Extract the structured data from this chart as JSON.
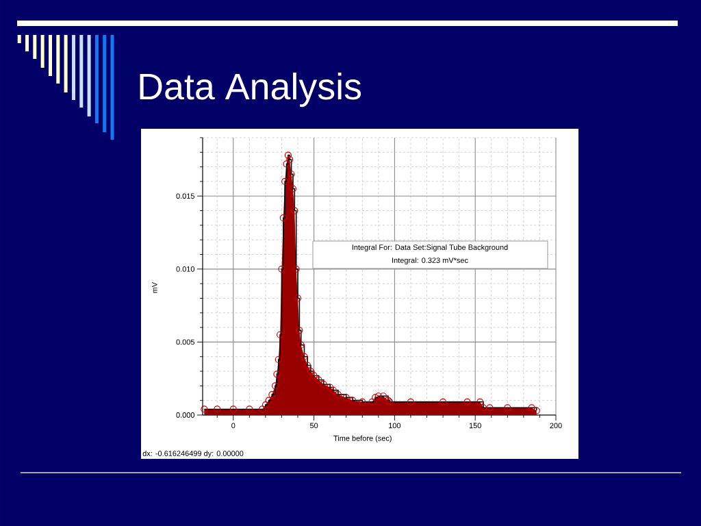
{
  "chart_data": {
    "type": "area",
    "title": "Data Analysis",
    "xlabel": "Time before (sec)",
    "ylabel": "mV",
    "annotations": [
      "Integral For: Data Set:Signal Tube Background",
      "Integral: 0.323 mV*sec",
      "dx: -0.616246499 dy: 0.00000"
    ],
    "x": [
      -18,
      -10,
      0,
      10,
      18,
      20,
      22,
      24,
      26,
      27,
      28,
      29,
      30,
      31,
      32,
      33,
      34,
      35,
      36,
      37,
      38,
      39,
      40,
      41,
      42,
      44,
      46,
      48,
      50,
      53,
      56,
      60,
      62,
      65,
      70,
      74,
      80,
      86,
      88,
      90,
      93,
      96,
      97,
      110,
      130,
      145,
      153,
      155,
      159,
      170,
      185,
      188
    ],
    "series": [
      {
        "color": "#990000",
        "values": [
          0.0004,
          0.0004,
          0.0004,
          0.0004,
          0.0004,
          0.0007,
          0.001,
          0.0014,
          0.002,
          0.0028,
          0.0038,
          0.0055,
          0.01,
          0.0135,
          0.016,
          0.0172,
          0.0178,
          0.0175,
          0.0165,
          0.0155,
          0.014,
          0.01,
          0.008,
          0.0058,
          0.0048,
          0.004,
          0.0034,
          0.003,
          0.0027,
          0.0024,
          0.0021,
          0.0019,
          0.0017,
          0.0014,
          0.0012,
          0.001,
          0.0009,
          0.0009,
          0.0012,
          0.0013,
          0.0013,
          0.001,
          0.0009,
          0.0009,
          0.0009,
          0.0009,
          0.0009,
          0.0005,
          0.0005,
          0.0005,
          0.0005,
          0.0003
        ]
      },
      {
        "type": "step",
        "color": "#000000",
        "values": [
          0.0004,
          0.0004,
          0.0004,
          0.0004,
          0.0004,
          0.0007,
          0.001,
          0.0014,
          0.002,
          0.0028,
          0.0038,
          0.0055,
          0.01,
          0.0135,
          0.016,
          0.0172,
          0.0178,
          0.0175,
          0.0165,
          0.0155,
          0.014,
          0.01,
          0.008,
          0.0058,
          0.0048,
          0.004,
          0.0034,
          0.003,
          0.0027,
          0.0024,
          0.0021,
          0.0019,
          0.0017,
          0.0014,
          0.0012,
          0.001,
          0.0009,
          0.0009,
          0.0012,
          0.0013,
          0.0013,
          0.001,
          0.0009,
          0.0009,
          0.0009,
          0.0009,
          0.0009,
          0.0005,
          0.0005,
          0.0005,
          0.0005,
          0.0003
        ]
      },
      {
        "type": "scatter",
        "marker": "circle",
        "color": "#cc0000",
        "values": [
          0.0004,
          0.0004,
          0.0004,
          0.0004,
          0.0004,
          0.0007,
          0.001,
          0.0014,
          0.002,
          0.0028,
          0.0038,
          0.0055,
          0.01,
          0.0135,
          0.016,
          0.0172,
          0.0178,
          0.0175,
          0.0165,
          0.0155,
          0.014,
          0.01,
          0.008,
          0.0058,
          0.0048,
          0.004,
          0.0034,
          0.003,
          0.0027,
          0.0024,
          0.0021,
          0.0019,
          0.0017,
          0.0014,
          0.0012,
          0.001,
          0.0009,
          0.0009,
          0.0012,
          0.0013,
          0.0013,
          0.001,
          0.0009,
          0.0009,
          0.0009,
          0.0009,
          0.0009,
          0.0005,
          0.0005,
          0.0005,
          0.0005,
          0.0003
        ]
      }
    ],
    "xlim": [
      -19,
      200
    ],
    "ylim": [
      0,
      0.019
    ],
    "xticks": [
      0,
      50,
      100,
      150,
      200
    ],
    "yticks": [
      {
        "value": 0,
        "label": "0.000"
      },
      {
        "value": 0.005,
        "label": "0.005"
      },
      {
        "value": 0.01,
        "label": "0.010"
      },
      {
        "value": 0.015,
        "label": "0.015"
      }
    ],
    "grid": true
  }
}
